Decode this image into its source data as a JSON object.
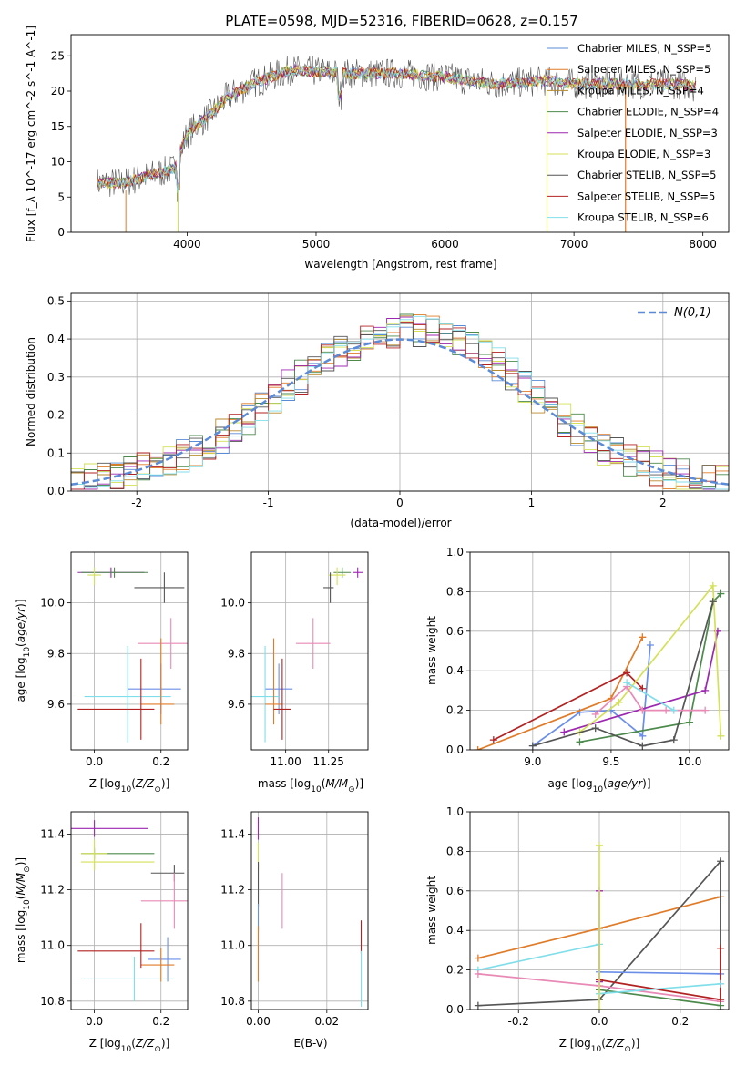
{
  "colors": {
    "series": [
      "#5a8bd6",
      "#e07b28",
      "#b8892e",
      "#4c8a4c",
      "#9c27b0",
      "#d4e157",
      "#555555",
      "#b22222",
      "#80deea"
    ],
    "extra": [
      "#80deea",
      "#e07b28",
      "#b22222",
      "#4c8a4c",
      "#555555",
      "#9c27b0",
      "#d4e157",
      "#6a8ee8",
      "#e88ab5"
    ],
    "normal": "#5b8bd6"
  },
  "chart_data": [
    {
      "id": "spectrum",
      "type": "line",
      "title": "PLATE=0598, MJD=52316, FIBERID=0628, z=0.157",
      "xlabel": "wavelength [Angstrom, rest frame]",
      "ylabel": "Flux [f_λ 10^-17 erg cm^-2 s^-1 A^-1]",
      "xlim": [
        3100,
        8200
      ],
      "ylim": [
        0,
        28
      ],
      "xticks": [
        4000,
        5000,
        6000,
        7000,
        8000
      ],
      "yticks": [
        0,
        5,
        10,
        15,
        20,
        25
      ],
      "grid": false,
      "legend": "top-right",
      "series": [
        {
          "name": "Chabrier MILES, N_SSP=5"
        },
        {
          "name": "Salpeter MILES, N_SSP=5"
        },
        {
          "name": "Kroupa MILES, N_SSP=4"
        },
        {
          "name": "Chabrier ELODIE, N_SSP=4"
        },
        {
          "name": "Salpeter ELODIE, N_SSP=3"
        },
        {
          "name": "Kroupa ELODIE, N_SSP=3"
        },
        {
          "name": "Chabrier STELIB, N_SSP=5"
        },
        {
          "name": "Salpeter STELIB, N_SSP=5"
        },
        {
          "name": "Kroupa STELIB, N_SSP=6"
        }
      ],
      "continuum": {
        "x": [
          3300,
          3500,
          3700,
          3900,
          4000,
          4200,
          4300,
          4500,
          4800,
          5200,
          5600,
          6000,
          6400,
          6800,
          7000,
          7200,
          7500,
          7800,
          8000
        ],
        "y": [
          7,
          7,
          8,
          9,
          14,
          17,
          19,
          21,
          23,
          22.5,
          22.5,
          22,
          21,
          21.5,
          21,
          21,
          21,
          21,
          20.5
        ]
      }
    },
    {
      "id": "residuals",
      "type": "area",
      "xlabel": "(data-model)/error",
      "ylabel": "Normed distribution",
      "xlim": [
        -2.5,
        2.5
      ],
      "ylim": [
        0,
        0.52
      ],
      "xticks": [
        -2,
        -1,
        0,
        1,
        2
      ],
      "yticks": [
        0.0,
        0.1,
        0.2,
        0.3,
        0.4,
        0.5
      ],
      "grid": true,
      "legend": "top-right",
      "legend_label": "N(0,1)",
      "bin_width": 0.1,
      "bins_x": [
        -2.5,
        -2.4,
        -2.3,
        -2.2,
        -2.1,
        -2.0,
        -1.9,
        -1.8,
        -1.7,
        -1.6,
        -1.5,
        -1.4,
        -1.3,
        -1.2,
        -1.1,
        -1.0,
        -0.9,
        -0.8,
        -0.7,
        -0.6,
        -0.5,
        -0.4,
        -0.3,
        -0.2,
        -0.1,
        0.0,
        0.1,
        0.2,
        0.3,
        0.4,
        0.5,
        0.6,
        0.7,
        0.8,
        0.9,
        1.0,
        1.1,
        1.2,
        1.3,
        1.4,
        1.5,
        1.6,
        1.7,
        1.8,
        1.9,
        2.0,
        2.1,
        2.2,
        2.3,
        2.4
      ],
      "hist_base": [
        0.025,
        0.03,
        0.04,
        0.05,
        0.055,
        0.06,
        0.065,
        0.08,
        0.095,
        0.11,
        0.13,
        0.145,
        0.165,
        0.19,
        0.215,
        0.245,
        0.275,
        0.3,
        0.33,
        0.355,
        0.375,
        0.39,
        0.4,
        0.41,
        0.415,
        0.42,
        0.42,
        0.415,
        0.41,
        0.4,
        0.385,
        0.36,
        0.335,
        0.305,
        0.275,
        0.245,
        0.215,
        0.185,
        0.16,
        0.135,
        0.115,
        0.1,
        0.085,
        0.07,
        0.06,
        0.05,
        0.04,
        0.035,
        0.03,
        0.025
      ]
    },
    {
      "id": "age-vs-Z",
      "type": "scatter",
      "xlabel": "Z [log10(Z/Z⊙)]",
      "ylabel": "age  [log10(age/yr)]",
      "xlim": [
        -0.07,
        0.28
      ],
      "ylim": [
        9.42,
        10.2
      ],
      "xticks": [
        0.0,
        0.2
      ],
      "yticks": [
        9.6,
        9.8,
        10.0
      ],
      "grid": true,
      "points": [
        {
          "x": 0.05,
          "y": 10.12,
          "xerr": [
            0.1,
            0.1
          ],
          "yerr": [
            0.02,
            0.02
          ],
          "c": 4
        },
        {
          "x": 0.06,
          "y": 10.12,
          "xerr": [
            0.1,
            0.1
          ],
          "yerr": [
            0.02,
            0.02
          ],
          "c": 3
        },
        {
          "x": 0.0,
          "y": 10.11,
          "xerr": [
            0.02,
            0.02
          ],
          "yerr": [
            0.04,
            0.03
          ],
          "c": 5
        },
        {
          "x": 0.21,
          "y": 10.06,
          "xerr": [
            0.09,
            0.06
          ],
          "yerr": [
            0.06,
            0.06
          ],
          "c": 6
        },
        {
          "x": 0.23,
          "y": 9.84,
          "xerr": [
            0.1,
            0.07
          ],
          "yerr": [
            0.1,
            0.1
          ],
          "c": 8
        },
        {
          "x": 0.2,
          "y": 9.66,
          "xerr": [
            0.1,
            0.06
          ],
          "yerr": [
            0.1,
            0.1
          ],
          "c": 7
        },
        {
          "x": 0.1,
          "y": 9.63,
          "xerr": [
            0.13,
            0.13
          ],
          "yerr": [
            0.18,
            0.2
          ],
          "c": 0
        },
        {
          "x": 0.2,
          "y": 9.6,
          "xerr": [
            0.06,
            0.04
          ],
          "yerr": [
            0.08,
            0.26
          ],
          "c": 1
        },
        {
          "x": 0.14,
          "y": 9.58,
          "xerr": [
            0.19,
            0.04
          ],
          "yerr": [
            0.12,
            0.2
          ],
          "c": 2
        }
      ]
    },
    {
      "id": "age-vs-mass",
      "type": "scatter",
      "xlabel": "mass [log10(M/M⊙)]",
      "ylabel": "",
      "xlim": [
        10.8,
        11.48
      ],
      "ylim": [
        9.42,
        10.2
      ],
      "xticks": [
        11.0,
        11.25
      ],
      "yticks": [
        9.6,
        9.8,
        10.0
      ],
      "grid": true,
      "points": [
        {
          "x": 11.42,
          "y": 10.12,
          "xerr": [
            0.03,
            0.03
          ],
          "yerr": [
            0.02,
            0.02
          ],
          "c": 4
        },
        {
          "x": 11.33,
          "y": 10.12,
          "xerr": [
            0.05,
            0.05
          ],
          "yerr": [
            0.02,
            0.02
          ],
          "c": 3
        },
        {
          "x": 11.3,
          "y": 10.11,
          "xerr": [
            0.05,
            0.05
          ],
          "yerr": [
            0.04,
            0.03
          ],
          "c": 5
        },
        {
          "x": 11.26,
          "y": 10.06,
          "xerr": [
            0.04,
            0.02
          ],
          "yerr": [
            0.06,
            0.06
          ],
          "c": 6
        },
        {
          "x": 11.16,
          "y": 9.84,
          "xerr": [
            0.1,
            0.1
          ],
          "yerr": [
            0.1,
            0.1
          ],
          "c": 8
        },
        {
          "x": 10.96,
          "y": 9.66,
          "xerr": [
            0.08,
            0.08
          ],
          "yerr": [
            0.1,
            0.1
          ],
          "c": 7
        },
        {
          "x": 10.88,
          "y": 9.63,
          "xerr": [
            0.08,
            0.08
          ],
          "yerr": [
            0.18,
            0.2
          ],
          "c": 0
        },
        {
          "x": 10.93,
          "y": 9.6,
          "xerr": [
            0.05,
            0.05
          ],
          "yerr": [
            0.08,
            0.26
          ],
          "c": 1
        },
        {
          "x": 10.98,
          "y": 9.58,
          "xerr": [
            0.05,
            0.05
          ],
          "yerr": [
            0.12,
            0.2
          ],
          "c": 2
        }
      ]
    },
    {
      "id": "weight-vs-age",
      "type": "line",
      "xlabel": "age  [log10(age/yr)]",
      "ylabel": "mass weight",
      "xlim": [
        8.6,
        10.25
      ],
      "ylim": [
        0,
        1.0
      ],
      "xticks": [
        9.0,
        9.5,
        10.0
      ],
      "yticks": [
        0.0,
        0.2,
        0.4,
        0.6,
        0.8,
        1.0
      ],
      "grid": true,
      "series": [
        {
          "c": 7,
          "x": [
            9.0,
            9.3,
            9.5,
            9.7,
            9.75
          ],
          "y": [
            0.02,
            0.19,
            0.2,
            0.07,
            0.53
          ]
        },
        {
          "c": 1,
          "x": [
            8.65,
            9.5,
            9.7
          ],
          "y": [
            0.0,
            0.26,
            0.57
          ]
        },
        {
          "c": 2,
          "x": [
            8.75,
            9.6,
            9.7
          ],
          "y": [
            0.05,
            0.39,
            0.31
          ]
        },
        {
          "c": 3,
          "x": [
            9.3,
            10.0,
            10.15,
            10.2
          ],
          "y": [
            0.04,
            0.14,
            0.75,
            0.79
          ]
        },
        {
          "c": 4,
          "x": [
            9.2,
            10.1,
            10.18
          ],
          "y": [
            0.09,
            0.3,
            0.6
          ]
        },
        {
          "c": 5,
          "x": [
            9.3,
            9.55,
            10.15,
            10.2
          ],
          "y": [
            0.09,
            0.24,
            0.83,
            0.07
          ]
        },
        {
          "c": 6,
          "x": [
            9.0,
            9.4,
            9.7,
            9.9,
            10.15
          ],
          "y": [
            0.02,
            0.11,
            0.02,
            0.05,
            0.75
          ]
        },
        {
          "c": 8,
          "x": [
            9.4,
            9.6,
            9.7,
            9.85,
            10.1
          ],
          "y": [
            0.18,
            0.32,
            0.2,
            0.2,
            0.2
          ]
        },
        {
          "c": 0,
          "x": [
            9.6,
            9.9
          ],
          "y": [
            0.34,
            0.2
          ]
        }
      ]
    },
    {
      "id": "mass-vs-Z",
      "type": "scatter",
      "xlabel": "Z [log10(Z/Z⊙)]",
      "ylabel": "mass [log10(M/M⊙)]",
      "xlim": [
        -0.07,
        0.28
      ],
      "ylim": [
        10.77,
        11.48
      ],
      "xticks": [
        0.0,
        0.2
      ],
      "yticks": [
        10.8,
        11.0,
        11.2,
        11.4
      ],
      "grid": true,
      "points": [
        {
          "x": 0.0,
          "y": 11.42,
          "xerr": [
            0.07,
            0.16
          ],
          "yerr": [
            0.03,
            0.03
          ],
          "c": 4
        },
        {
          "x": 0.0,
          "y": 11.33,
          "xerr": [
            0.04,
            0.18
          ],
          "yerr": [
            0.02,
            0.02
          ],
          "c": 3
        },
        {
          "x": 0.0,
          "y": 11.3,
          "xerr": [
            0.04,
            0.18
          ],
          "yerr": [
            0.03,
            0.03
          ],
          "c": 5
        },
        {
          "x": 0.0,
          "y": 11.33,
          "xerr": [
            0.04,
            0.04
          ],
          "yerr": [
            0.06,
            0.05
          ],
          "c": 5
        },
        {
          "x": 0.24,
          "y": 11.26,
          "xerr": [
            0.07,
            0.03
          ],
          "yerr": [
            0.03,
            0.03
          ],
          "c": 6
        },
        {
          "x": 0.24,
          "y": 11.16,
          "xerr": [
            0.1,
            0.08
          ],
          "yerr": [
            0.1,
            0.1
          ],
          "c": 8
        },
        {
          "x": 0.22,
          "y": 10.95,
          "xerr": [
            0.06,
            0.04
          ],
          "yerr": [
            0.08,
            0.08
          ],
          "c": 7
        },
        {
          "x": 0.12,
          "y": 10.88,
          "xerr": [
            0.16,
            0.12
          ],
          "yerr": [
            0.08,
            0.08
          ],
          "c": 0
        },
        {
          "x": 0.2,
          "y": 10.93,
          "xerr": [
            0.06,
            0.04
          ],
          "yerr": [
            0.06,
            0.06
          ],
          "c": 1
        },
        {
          "x": 0.14,
          "y": 10.98,
          "xerr": [
            0.19,
            0.04
          ],
          "yerr": [
            0.06,
            0.1
          ],
          "c": 2
        }
      ]
    },
    {
      "id": "mass-vs-EBV",
      "type": "scatter",
      "xlabel": "E(B-V)",
      "ylabel": "",
      "xlim": [
        -0.002,
        0.032
      ],
      "ylim": [
        10.77,
        11.48
      ],
      "xticks": [
        0.0,
        0.02
      ],
      "yticks": [
        10.8,
        11.0,
        11.2,
        11.4
      ],
      "grid": true,
      "points": [
        {
          "x": 0.0,
          "y": 11.42,
          "xerr": [
            0,
            0
          ],
          "yerr": [
            0.04,
            0.04
          ],
          "c": 4
        },
        {
          "x": 0.0,
          "y": 11.32,
          "xerr": [
            0,
            0
          ],
          "yerr": [
            0.05,
            0.05
          ],
          "c": 5
        },
        {
          "x": 0.0,
          "y": 11.22,
          "xerr": [
            0,
            0
          ],
          "yerr": [
            0.08,
            0.08
          ],
          "c": 6
        },
        {
          "x": 0.0,
          "y": 11.1,
          "xerr": [
            0,
            0
          ],
          "yerr": [
            0.05,
            0.05
          ],
          "c": 7
        },
        {
          "x": 0.0,
          "y": 10.97,
          "xerr": [
            0,
            0
          ],
          "yerr": [
            0.1,
            0.1
          ],
          "c": 1
        },
        {
          "x": 0.007,
          "y": 11.16,
          "xerr": [
            0,
            0
          ],
          "yerr": [
            0.1,
            0.1
          ],
          "c": 8
        },
        {
          "x": 0.03,
          "y": 11.03,
          "xerr": [
            0,
            0
          ],
          "yerr": [
            0.06,
            0.06
          ],
          "c": 2
        },
        {
          "x": 0.03,
          "y": 10.88,
          "xerr": [
            0,
            0
          ],
          "yerr": [
            0.1,
            0.1
          ],
          "c": 0
        }
      ]
    },
    {
      "id": "weight-vs-Z",
      "type": "line",
      "xlabel": "Z [log10(Z/Z⊙)]",
      "ylabel": "mass weight",
      "xlim": [
        -0.32,
        0.32
      ],
      "ylim": [
        0,
        1.0
      ],
      "xticks": [
        -0.2,
        0.0,
        0.2
      ],
      "yticks": [
        0.0,
        0.2,
        0.4,
        0.6,
        0.8,
        1.0
      ],
      "grid": true,
      "series": [
        {
          "c": 1,
          "x": [
            -0.3,
            0.0,
            0.3
          ],
          "y": [
            0.26,
            0.41,
            0.57
          ]
        },
        {
          "c": 6,
          "x": [
            -0.3,
            0.0,
            0.3,
            0.3
          ],
          "y": [
            0.02,
            0.05,
            0.75,
            0.0
          ]
        },
        {
          "c": 0,
          "x": [
            -0.3,
            0.0,
            0.0
          ],
          "y": [
            0.2,
            0.33,
            0.08
          ]
        },
        {
          "c": 8,
          "x": [
            -0.3,
            0.0,
            0.3
          ],
          "y": [
            0.18,
            0.12,
            0.04
          ]
        },
        {
          "c": 7,
          "x": [
            0.0,
            0.3
          ],
          "y": [
            0.19,
            0.18
          ]
        },
        {
          "c": 2,
          "x": [
            0.0,
            0.3,
            0.3
          ],
          "y": [
            0.15,
            0.05,
            0.31
          ]
        },
        {
          "c": 3,
          "x": [
            0.0,
            0.3
          ],
          "y": [
            0.1,
            0.02
          ]
        },
        {
          "c": 0,
          "x": [
            0.0,
            0.3
          ],
          "y": [
            0.08,
            0.13
          ]
        },
        {
          "c": 4,
          "x": [
            0.0,
            0.0
          ],
          "y": [
            0.6,
            0.14
          ]
        },
        {
          "c": 5,
          "x": [
            0.0,
            0.0
          ],
          "y": [
            0.83,
            0.0
          ]
        }
      ]
    }
  ]
}
